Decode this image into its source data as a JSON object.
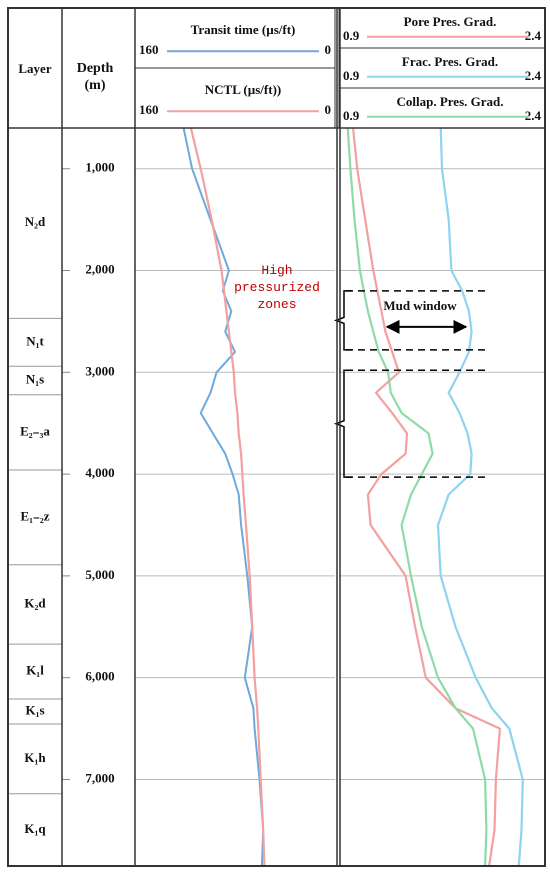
{
  "chart_data": {
    "type": "well-log",
    "layer_header": "Layer",
    "ylabel": "Depth (m)",
    "ylim": [
      600,
      7850
    ],
    "yticks": [
      {
        "value": 1000,
        "label": "1,000"
      },
      {
        "value": 2000,
        "label": "2,000"
      },
      {
        "value": 3000,
        "label": "3,000"
      },
      {
        "value": 4000,
        "label": "4,000"
      },
      {
        "value": 5000,
        "label": "5,000"
      },
      {
        "value": 6000,
        "label": "6,000"
      },
      {
        "value": 7000,
        "label": "7,000"
      }
    ],
    "grid": true,
    "layers": [
      "N₂d",
      "N₁t",
      "N₁s",
      "E₂₋₃a",
      "E₁₋₂z",
      "K₂d",
      "K₁l",
      "K₁s",
      "K₁h",
      "K₁q"
    ],
    "layer_boundaries": [
      2470,
      2940,
      3220,
      3960,
      4890,
      5670,
      6210,
      6455,
      7140
    ],
    "depth": [
      600,
      1000,
      1500,
      2000,
      2200,
      2400,
      2600,
      2800,
      3000,
      3200,
      3400,
      3600,
      3800,
      4000,
      4200,
      4500,
      5000,
      5500,
      6000,
      6300,
      6500,
      7000,
      7500,
      7850
    ],
    "tracks": [
      {
        "xlim": [
          160,
          0
        ],
        "series": [
          {
            "name": "Transit time (µs/ft)",
            "color": "#6fa8dc",
            "values": [
              122,
              115,
              100,
              85,
              90,
              83,
              88,
              80,
              95,
              100,
              108,
              98,
              88,
              82,
              77,
              75,
              70,
              66,
              72,
              65,
              64,
              60,
              57,
              58
            ]
          },
          {
            "name": "NCTL (µs/ft))",
            "color": "#f4a0a0",
            "values": [
              116,
              108,
              99,
              91,
              89,
              87,
              85,
              83,
              81,
              80,
              78,
              77,
              75,
              74,
              73,
              71,
              68,
              66,
              64,
              62,
              61,
              59,
              57,
              56
            ]
          }
        ]
      },
      {
        "xlim": [
          0.9,
          2.4
        ],
        "series": [
          {
            "name": "Pore Pres. Grad.",
            "color": "#f4a0a0",
            "values": [
              0.99,
              1.02,
              1.08,
              1.14,
              1.17,
              1.2,
              1.23,
              1.28,
              1.33,
              1.16,
              1.28,
              1.39,
              1.38,
              1.2,
              1.1,
              1.12,
              1.38,
              1.45,
              1.53,
              1.75,
              2.08,
              2.05,
              2.04,
              2.0
            ]
          },
          {
            "name": "Frac. Pres. Grad.",
            "color": "#8fd3f0",
            "values": [
              1.64,
              1.65,
              1.7,
              1.72,
              1.8,
              1.85,
              1.87,
              1.85,
              1.78,
              1.7,
              1.78,
              1.84,
              1.87,
              1.86,
              1.7,
              1.62,
              1.64,
              1.75,
              1.9,
              2.02,
              2.15,
              2.25,
              2.24,
              2.22
            ]
          },
          {
            "name": "Collap. Pres. Grad.",
            "color": "#8fdba8",
            "values": [
              0.95,
              0.97,
              1.0,
              1.04,
              1.07,
              1.1,
              1.14,
              1.18,
              1.25,
              1.27,
              1.35,
              1.55,
              1.58,
              1.5,
              1.42,
              1.35,
              1.42,
              1.5,
              1.62,
              1.75,
              1.88,
              1.97,
              1.98,
              1.97
            ]
          }
        ]
      }
    ],
    "annotation": "High pressurized zones",
    "window_label": "Mud window",
    "zones": [
      [
        2200,
        2780
      ],
      [
        2980,
        4030
      ]
    ]
  }
}
